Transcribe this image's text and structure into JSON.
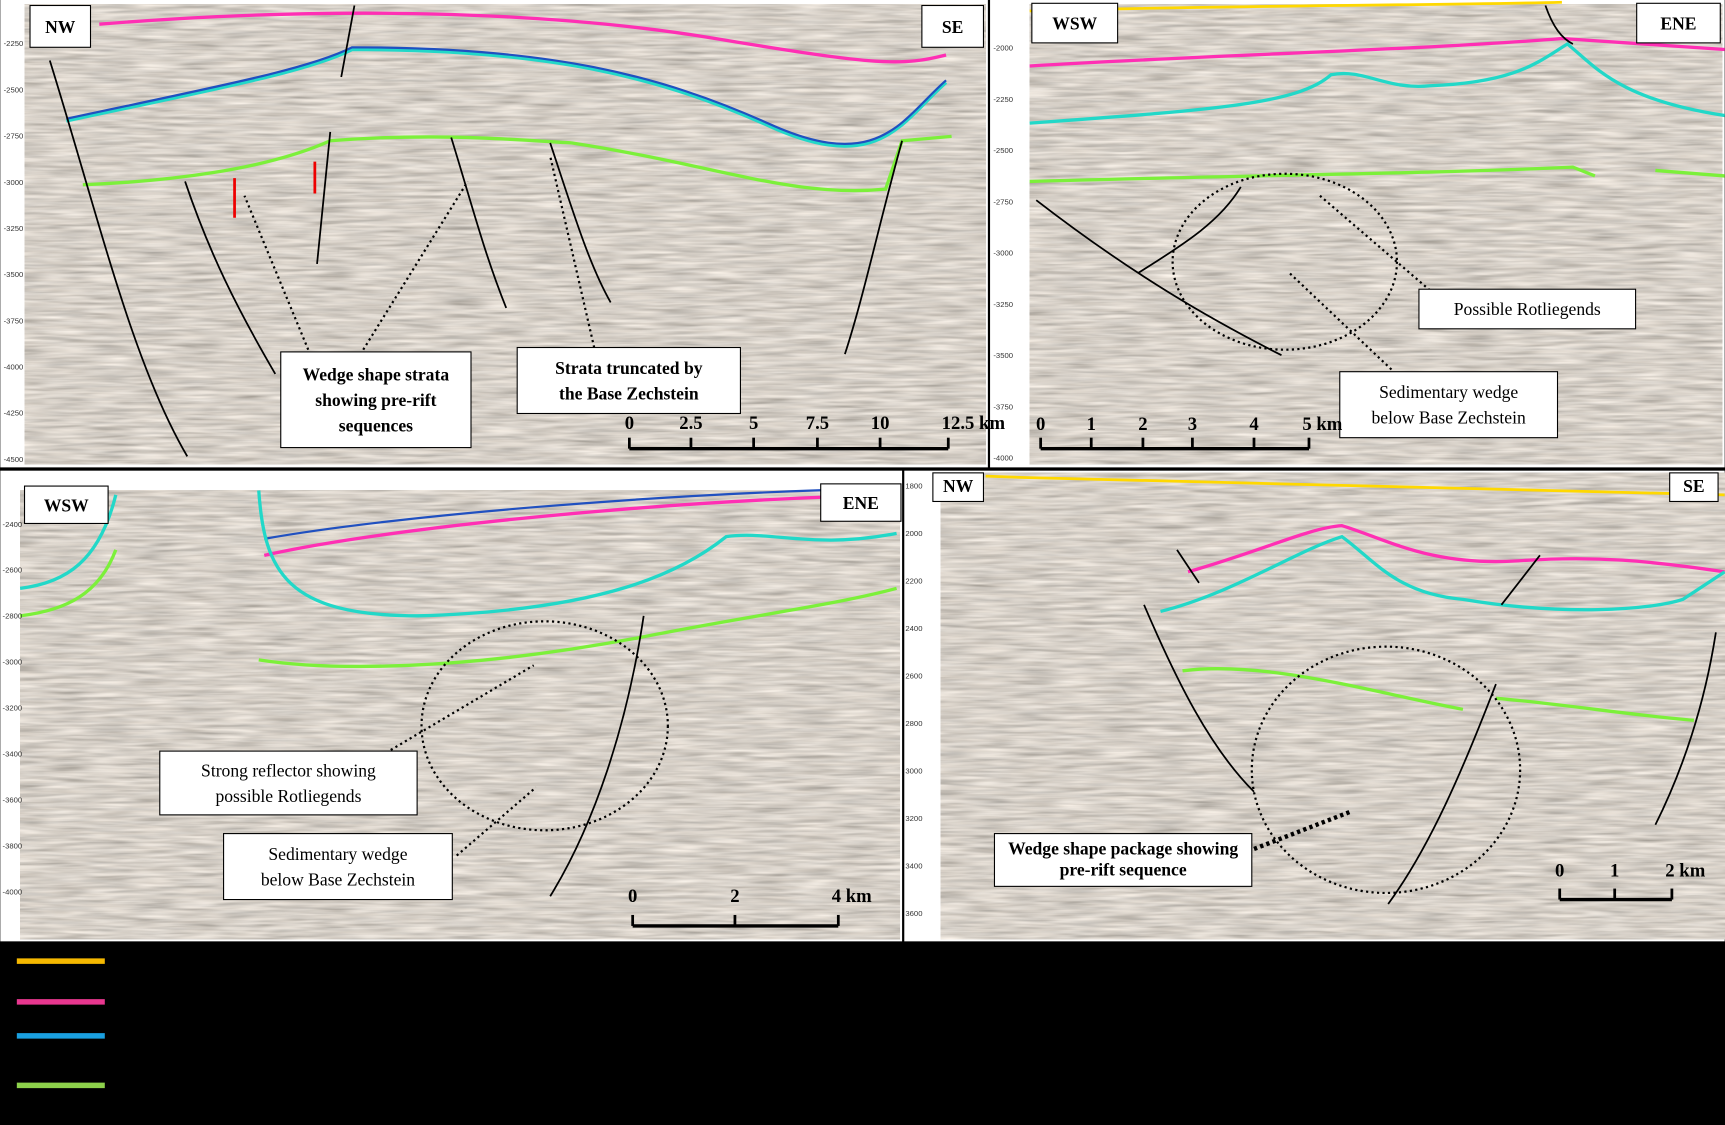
{
  "panels": [
    {
      "label_left": "NW",
      "label_right": "SE",
      "depth_ticks": [
        -2250,
        -2500,
        -2750,
        -3000,
        -3250,
        -3500,
        -3750,
        -4000,
        -4250,
        -4500
      ],
      "annotations": [
        [
          "Wedge shape strata",
          "showing pre-rift",
          "sequences"
        ],
        [
          "Strata truncated by",
          "the Base Zechstein"
        ]
      ],
      "scale": [
        "0",
        "2.5",
        "5",
        "7.5",
        "10",
        "12.5 km"
      ]
    },
    {
      "label_left": "WSW",
      "label_right": "ENE",
      "depth_ticks": [
        -2000,
        -2250,
        -2500,
        -2750,
        -3000,
        -3250,
        -3500,
        -3750,
        -4000
      ],
      "annotations": [
        [
          "Possible Rotliegends"
        ],
        [
          "Sedimentary  wedge",
          "below Base Zechstein"
        ]
      ],
      "scale": [
        "0",
        "1",
        "2",
        "3",
        "4",
        "5 km"
      ]
    },
    {
      "label_left": "WSW",
      "label_right": "ENE",
      "depth_ticks": [
        -2400,
        -2600,
        -2800,
        -3000,
        -3200,
        -3400,
        -3600,
        -3800,
        -4000
      ],
      "annotations": [
        [
          "Strong reflector showing",
          "possible Rotliegends"
        ],
        [
          "Sedimentary  wedge",
          "below Base Zechstein"
        ]
      ],
      "scale": [
        "0",
        "2",
        "4 km"
      ]
    },
    {
      "label_left": "NW",
      "label_right": "SE",
      "depth_ticks": [
        1800,
        2000,
        2200,
        2400,
        2600,
        2800,
        3000,
        3200,
        3400,
        3600
      ],
      "annotations": [
        [
          "Wedge shape package showing",
          "pre-rift sequence"
        ]
      ],
      "scale": [
        "0",
        "1",
        "2 km"
      ]
    }
  ]
}
